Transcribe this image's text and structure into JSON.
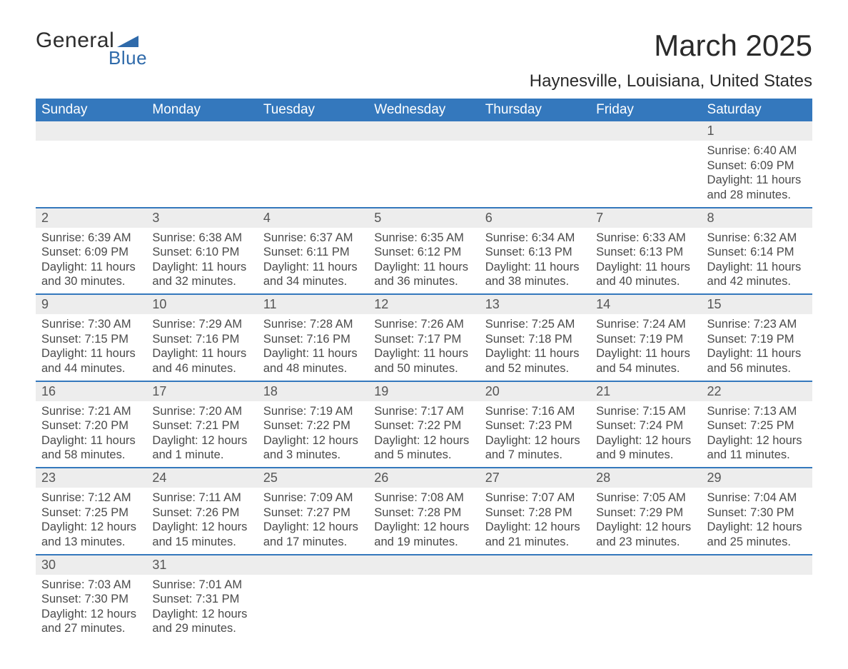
{
  "logo": {
    "text_top": "General",
    "text_bottom": "Blue",
    "shape_color": "#2f6aaa"
  },
  "title": "March 2025",
  "location": "Haynesville, Louisiana, United States",
  "header_color": "#3478bd",
  "weekdays": [
    "Sunday",
    "Monday",
    "Tuesday",
    "Wednesday",
    "Thursday",
    "Friday",
    "Saturday"
  ],
  "weeks": [
    [
      null,
      null,
      null,
      null,
      null,
      null,
      {
        "d": "1",
        "sr": "Sunrise: 6:40 AM",
        "ss": "Sunset: 6:09 PM",
        "dl1": "Daylight: 11 hours",
        "dl2": "and 28 minutes."
      }
    ],
    [
      {
        "d": "2",
        "sr": "Sunrise: 6:39 AM",
        "ss": "Sunset: 6:09 PM",
        "dl1": "Daylight: 11 hours",
        "dl2": "and 30 minutes."
      },
      {
        "d": "3",
        "sr": "Sunrise: 6:38 AM",
        "ss": "Sunset: 6:10 PM",
        "dl1": "Daylight: 11 hours",
        "dl2": "and 32 minutes."
      },
      {
        "d": "4",
        "sr": "Sunrise: 6:37 AM",
        "ss": "Sunset: 6:11 PM",
        "dl1": "Daylight: 11 hours",
        "dl2": "and 34 minutes."
      },
      {
        "d": "5",
        "sr": "Sunrise: 6:35 AM",
        "ss": "Sunset: 6:12 PM",
        "dl1": "Daylight: 11 hours",
        "dl2": "and 36 minutes."
      },
      {
        "d": "6",
        "sr": "Sunrise: 6:34 AM",
        "ss": "Sunset: 6:13 PM",
        "dl1": "Daylight: 11 hours",
        "dl2": "and 38 minutes."
      },
      {
        "d": "7",
        "sr": "Sunrise: 6:33 AM",
        "ss": "Sunset: 6:13 PM",
        "dl1": "Daylight: 11 hours",
        "dl2": "and 40 minutes."
      },
      {
        "d": "8",
        "sr": "Sunrise: 6:32 AM",
        "ss": "Sunset: 6:14 PM",
        "dl1": "Daylight: 11 hours",
        "dl2": "and 42 minutes."
      }
    ],
    [
      {
        "d": "9",
        "sr": "Sunrise: 7:30 AM",
        "ss": "Sunset: 7:15 PM",
        "dl1": "Daylight: 11 hours",
        "dl2": "and 44 minutes."
      },
      {
        "d": "10",
        "sr": "Sunrise: 7:29 AM",
        "ss": "Sunset: 7:16 PM",
        "dl1": "Daylight: 11 hours",
        "dl2": "and 46 minutes."
      },
      {
        "d": "11",
        "sr": "Sunrise: 7:28 AM",
        "ss": "Sunset: 7:16 PM",
        "dl1": "Daylight: 11 hours",
        "dl2": "and 48 minutes."
      },
      {
        "d": "12",
        "sr": "Sunrise: 7:26 AM",
        "ss": "Sunset: 7:17 PM",
        "dl1": "Daylight: 11 hours",
        "dl2": "and 50 minutes."
      },
      {
        "d": "13",
        "sr": "Sunrise: 7:25 AM",
        "ss": "Sunset: 7:18 PM",
        "dl1": "Daylight: 11 hours",
        "dl2": "and 52 minutes."
      },
      {
        "d": "14",
        "sr": "Sunrise: 7:24 AM",
        "ss": "Sunset: 7:19 PM",
        "dl1": "Daylight: 11 hours",
        "dl2": "and 54 minutes."
      },
      {
        "d": "15",
        "sr": "Sunrise: 7:23 AM",
        "ss": "Sunset: 7:19 PM",
        "dl1": "Daylight: 11 hours",
        "dl2": "and 56 minutes."
      }
    ],
    [
      {
        "d": "16",
        "sr": "Sunrise: 7:21 AM",
        "ss": "Sunset: 7:20 PM",
        "dl1": "Daylight: 11 hours",
        "dl2": "and 58 minutes."
      },
      {
        "d": "17",
        "sr": "Sunrise: 7:20 AM",
        "ss": "Sunset: 7:21 PM",
        "dl1": "Daylight: 12 hours",
        "dl2": "and 1 minute."
      },
      {
        "d": "18",
        "sr": "Sunrise: 7:19 AM",
        "ss": "Sunset: 7:22 PM",
        "dl1": "Daylight: 12 hours",
        "dl2": "and 3 minutes."
      },
      {
        "d": "19",
        "sr": "Sunrise: 7:17 AM",
        "ss": "Sunset: 7:22 PM",
        "dl1": "Daylight: 12 hours",
        "dl2": "and 5 minutes."
      },
      {
        "d": "20",
        "sr": "Sunrise: 7:16 AM",
        "ss": "Sunset: 7:23 PM",
        "dl1": "Daylight: 12 hours",
        "dl2": "and 7 minutes."
      },
      {
        "d": "21",
        "sr": "Sunrise: 7:15 AM",
        "ss": "Sunset: 7:24 PM",
        "dl1": "Daylight: 12 hours",
        "dl2": "and 9 minutes."
      },
      {
        "d": "22",
        "sr": "Sunrise: 7:13 AM",
        "ss": "Sunset: 7:25 PM",
        "dl1": "Daylight: 12 hours",
        "dl2": "and 11 minutes."
      }
    ],
    [
      {
        "d": "23",
        "sr": "Sunrise: 7:12 AM",
        "ss": "Sunset: 7:25 PM",
        "dl1": "Daylight: 12 hours",
        "dl2": "and 13 minutes."
      },
      {
        "d": "24",
        "sr": "Sunrise: 7:11 AM",
        "ss": "Sunset: 7:26 PM",
        "dl1": "Daylight: 12 hours",
        "dl2": "and 15 minutes."
      },
      {
        "d": "25",
        "sr": "Sunrise: 7:09 AM",
        "ss": "Sunset: 7:27 PM",
        "dl1": "Daylight: 12 hours",
        "dl2": "and 17 minutes."
      },
      {
        "d": "26",
        "sr": "Sunrise: 7:08 AM",
        "ss": "Sunset: 7:28 PM",
        "dl1": "Daylight: 12 hours",
        "dl2": "and 19 minutes."
      },
      {
        "d": "27",
        "sr": "Sunrise: 7:07 AM",
        "ss": "Sunset: 7:28 PM",
        "dl1": "Daylight: 12 hours",
        "dl2": "and 21 minutes."
      },
      {
        "d": "28",
        "sr": "Sunrise: 7:05 AM",
        "ss": "Sunset: 7:29 PM",
        "dl1": "Daylight: 12 hours",
        "dl2": "and 23 minutes."
      },
      {
        "d": "29",
        "sr": "Sunrise: 7:04 AM",
        "ss": "Sunset: 7:30 PM",
        "dl1": "Daylight: 12 hours",
        "dl2": "and 25 minutes."
      }
    ],
    [
      {
        "d": "30",
        "sr": "Sunrise: 7:03 AM",
        "ss": "Sunset: 7:30 PM",
        "dl1": "Daylight: 12 hours",
        "dl2": "and 27 minutes."
      },
      {
        "d": "31",
        "sr": "Sunrise: 7:01 AM",
        "ss": "Sunset: 7:31 PM",
        "dl1": "Daylight: 12 hours",
        "dl2": "and 29 minutes."
      },
      null,
      null,
      null,
      null,
      null
    ]
  ]
}
